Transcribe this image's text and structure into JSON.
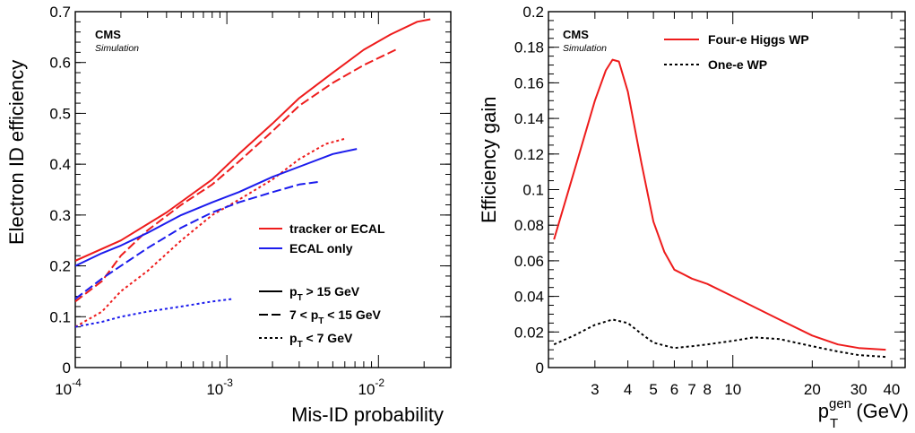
{
  "chart_data": [
    {
      "type": "line",
      "xscale": "log",
      "xlim": [
        0.0001,
        0.03
      ],
      "ylim": [
        0,
        0.7
      ],
      "xlabel": "Mis-ID probability",
      "ylabel": "Electron ID efficiency",
      "x_tick_labels": [
        "10",
        "10",
        "10"
      ],
      "x_tick_exponents": [
        "-4",
        "-3",
        "-2"
      ],
      "y_tick_labels": [
        "0",
        "0.1",
        "0.2",
        "0.3",
        "0.4",
        "0.5",
        "0.6",
        "0.7"
      ],
      "y_ticks": [
        0,
        0.1,
        0.2,
        0.3,
        0.4,
        0.5,
        0.6,
        0.7
      ],
      "grid": false,
      "badge": {
        "experiment": "CMS",
        "tag": "Simulation"
      },
      "legend": {
        "placement": "bottom-right",
        "colors": [
          "tracker or ECAL",
          "ECAL only"
        ],
        "styles": [
          {
            "pre": "p",
            "sub": "T",
            "post": " > 15 GeV"
          },
          {
            "pre": "7 < p",
            "sub": "T",
            "post": " < 15 GeV"
          },
          {
            "pre": "p",
            "sub": "T",
            "post": " < 7 GeV"
          }
        ]
      },
      "series": [
        {
          "category": "tracker or ECAL",
          "range": "high",
          "color": "#ee1c1c",
          "dash": "solid",
          "x": [
            0.0001,
            0.0002,
            0.0004,
            0.0008,
            0.0012,
            0.002,
            0.003,
            0.005,
            0.008,
            0.012,
            0.018,
            0.022
          ],
          "y": [
            0.21,
            0.25,
            0.305,
            0.37,
            0.42,
            0.48,
            0.53,
            0.58,
            0.625,
            0.655,
            0.68,
            0.685
          ]
        },
        {
          "category": "tracker or ECAL",
          "range": "mid",
          "color": "#ee1c1c",
          "dash": "long",
          "x": [
            0.0001,
            0.00015,
            0.0002,
            0.0003,
            0.0005,
            0.0008,
            0.0012,
            0.002,
            0.003,
            0.005,
            0.008,
            0.013
          ],
          "y": [
            0.13,
            0.17,
            0.22,
            0.27,
            0.32,
            0.36,
            0.405,
            0.465,
            0.515,
            0.56,
            0.595,
            0.625
          ]
        },
        {
          "category": "tracker or ECAL",
          "range": "low",
          "color": "#ee1c1c",
          "dash": "short",
          "x": [
            0.0001,
            0.00015,
            0.0002,
            0.0003,
            0.0005,
            0.0008,
            0.0012,
            0.002,
            0.003,
            0.0045,
            0.006
          ],
          "y": [
            0.08,
            0.11,
            0.15,
            0.19,
            0.25,
            0.3,
            0.33,
            0.37,
            0.41,
            0.44,
            0.45
          ]
        },
        {
          "category": "ECAL only",
          "range": "high",
          "color": "#1c1ced",
          "dash": "solid",
          "x": [
            0.0001,
            0.00015,
            0.0002,
            0.0003,
            0.0005,
            0.0008,
            0.0012,
            0.002,
            0.003,
            0.005,
            0.0072
          ],
          "y": [
            0.2,
            0.225,
            0.24,
            0.265,
            0.3,
            0.325,
            0.345,
            0.375,
            0.395,
            0.42,
            0.43
          ]
        },
        {
          "category": "ECAL only",
          "range": "mid",
          "color": "#1c1ced",
          "dash": "long",
          "x": [
            0.0001,
            0.00015,
            0.0002,
            0.0003,
            0.0005,
            0.0008,
            0.0012,
            0.002,
            0.003,
            0.004
          ],
          "y": [
            0.135,
            0.175,
            0.2,
            0.235,
            0.275,
            0.305,
            0.325,
            0.345,
            0.36,
            0.365
          ]
        },
        {
          "category": "ECAL only",
          "range": "low",
          "color": "#1c1ced",
          "dash": "short",
          "x": [
            0.0001,
            0.00015,
            0.0002,
            0.0003,
            0.0005,
            0.0008,
            0.0011
          ],
          "y": [
            0.08,
            0.09,
            0.1,
            0.11,
            0.12,
            0.13,
            0.135
          ]
        }
      ]
    },
    {
      "type": "line",
      "xscale": "log",
      "xlim": [
        2,
        45
      ],
      "ylim": [
        0,
        0.2
      ],
      "xlabel_pre": "p",
      "xlabel_sub": "T",
      "xlabel_sup": "gen",
      "xlabel_post": " (GeV)",
      "ylabel": "Efficiency gain",
      "x_ticks": [
        3,
        4,
        5,
        6,
        7,
        8,
        10,
        20,
        30,
        40
      ],
      "x_tick_labels": [
        "3",
        "4",
        "5",
        "6",
        "7",
        "8",
        "10",
        "20",
        "30",
        "40"
      ],
      "y_ticks": [
        0,
        0.02,
        0.04,
        0.06,
        0.08,
        0.1,
        0.12,
        0.14,
        0.16,
        0.18,
        0.2
      ],
      "y_tick_labels": [
        "0",
        "0.02",
        "0.04",
        "0.06",
        "0.08",
        "0.1",
        "0.12",
        "0.14",
        "0.16",
        "0.18",
        "0.2"
      ],
      "grid": false,
      "badge": {
        "experiment": "CMS",
        "tag": "Simulation"
      },
      "legend_placement": "top-right",
      "series": [
        {
          "name": "Four-e Higgs WP",
          "color": "#ee1c1c",
          "dash": "solid",
          "x": [
            2.1,
            2.5,
            3.0,
            3.3,
            3.5,
            3.7,
            4.0,
            4.5,
            5.0,
            5.5,
            6.0,
            7.0,
            8.0,
            10,
            15,
            20,
            25,
            30,
            38
          ],
          "y": [
            0.072,
            0.11,
            0.15,
            0.167,
            0.173,
            0.172,
            0.155,
            0.115,
            0.082,
            0.065,
            0.055,
            0.05,
            0.047,
            0.04,
            0.027,
            0.018,
            0.013,
            0.011,
            0.01
          ]
        },
        {
          "name": "One-e WP",
          "color": "#000000",
          "dash": "short",
          "x": [
            2.1,
            2.5,
            3.0,
            3.5,
            4.0,
            4.5,
            5.0,
            6.0,
            7.0,
            8.0,
            10,
            12,
            15,
            20,
            25,
            30,
            38
          ],
          "y": [
            0.013,
            0.018,
            0.024,
            0.027,
            0.025,
            0.019,
            0.014,
            0.011,
            0.012,
            0.013,
            0.015,
            0.017,
            0.016,
            0.012,
            0.009,
            0.007,
            0.006
          ]
        }
      ]
    }
  ]
}
